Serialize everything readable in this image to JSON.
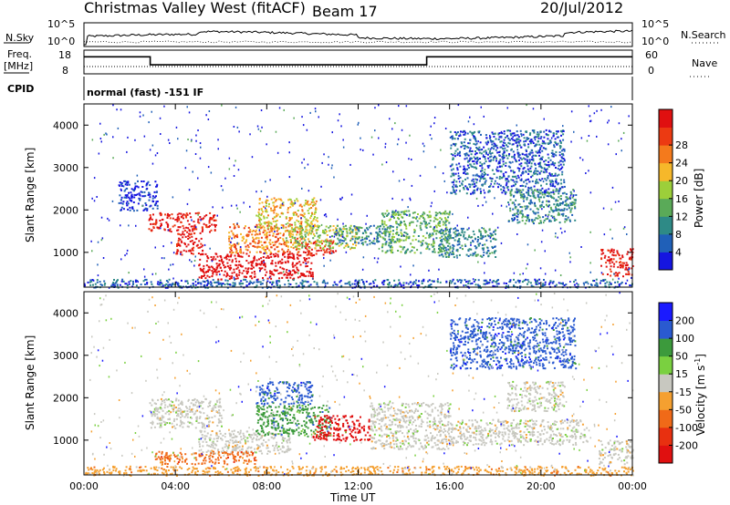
{
  "header": {
    "title": "Christmas Valley West (fitACF)",
    "beam": "Beam 17",
    "date": "20/Jul/2012"
  },
  "status_panels": {
    "nsky_label": "N.Sky",
    "nsky_ticks": [
      "10^5",
      "10^0"
    ],
    "nsearch_label": "N.Search",
    "nsearch_ticks": [
      "10^5",
      "10^0"
    ],
    "freq_label_line1": "Freq.",
    "freq_label_line2": "[MHz]",
    "freq_ticks": [
      "18",
      "8"
    ],
    "nave_label": "Nave",
    "nave_ticks": [
      "60",
      "0"
    ],
    "cpid_label": "CPID",
    "cpid_text": "normal (fast) -151 IF",
    "freq_steps": [
      {
        "hour_start": 0,
        "hour_end": 2.9,
        "mhz": 15.2
      },
      {
        "hour_start": 2.9,
        "hour_end": 15.0,
        "mhz": 11.8
      },
      {
        "hour_start": 15.0,
        "hour_end": 24,
        "mhz": 15.2
      }
    ]
  },
  "axes": {
    "xlabel": "Time UT",
    "x_ticks": [
      "00:00",
      "04:00",
      "08:00",
      "12:00",
      "16:00",
      "20:00",
      "00:00"
    ],
    "ylabel": "Slant Range [km]",
    "y_ticks": [
      "1000",
      "2000",
      "3000",
      "4000"
    ]
  },
  "power_colorbar": {
    "label": "Power [dB]",
    "ticks": [
      "4",
      "8",
      "12",
      "16",
      "20",
      "24",
      "28"
    ],
    "colors": [
      "#1515e0",
      "#2060b8",
      "#2e8a86",
      "#5aaa58",
      "#9ccf3a",
      "#f6b82a",
      "#f47a1c",
      "#ec3a12",
      "#e01010"
    ]
  },
  "velocity_colorbar": {
    "label_main": "Velocity [m s",
    "label_sup": "-1",
    "label_end": "]",
    "ticks": [
      "200",
      "100",
      "50",
      "15",
      "-15",
      "-50",
      "-100",
      "-200"
    ],
    "colors": [
      "#1a1aff",
      "#2a5ad0",
      "#3c9a3c",
      "#7ad040",
      "#c8c8c0",
      "#f5a030",
      "#f06a18",
      "#e83010",
      "#e01010"
    ]
  },
  "chart_data": {
    "type": "heatmap",
    "x_range_hours": [
      0,
      24
    ],
    "y_range_km": [
      180,
      4500
    ],
    "power_features": [
      {
        "t0": 2.8,
        "t1": 5.8,
        "r0": 1500,
        "r1": 1950,
        "level": 8
      },
      {
        "t0": 4.0,
        "t1": 5.2,
        "r0": 950,
        "r1": 1500,
        "level": 8
      },
      {
        "t0": 5.0,
        "t1": 10.0,
        "r0": 380,
        "r1": 1000,
        "level": 9
      },
      {
        "t0": 6.3,
        "t1": 9.5,
        "r0": 1000,
        "r1": 1700,
        "level": 6
      },
      {
        "t0": 7.5,
        "t1": 10.2,
        "r0": 1500,
        "r1": 2300,
        "level": 5
      },
      {
        "t0": 9.5,
        "t1": 11.0,
        "r0": 950,
        "r1": 1300,
        "level": 8
      },
      {
        "t0": 8.8,
        "t1": 12.0,
        "r0": 1100,
        "r1": 1650,
        "level": 4
      },
      {
        "t0": 11.0,
        "t1": 13.5,
        "r0": 1200,
        "r1": 1650,
        "level": 2
      },
      {
        "t0": 13.0,
        "t1": 16.0,
        "r0": 1000,
        "r1": 2000,
        "level": 3
      },
      {
        "t0": 15.5,
        "t1": 18.0,
        "r0": 900,
        "r1": 1600,
        "level": 2
      },
      {
        "t0": 16.0,
        "t1": 21.0,
        "r0": 2400,
        "r1": 3900,
        "level": 1
      },
      {
        "t0": 18.5,
        "t1": 21.5,
        "r0": 1700,
        "r1": 2500,
        "level": 2
      },
      {
        "t0": 22.6,
        "t1": 24.0,
        "r0": 450,
        "r1": 1100,
        "level": 8
      },
      {
        "t0": 0.0,
        "t1": 24.0,
        "r0": 180,
        "r1": 380,
        "level": 1
      },
      {
        "t0": 1.5,
        "t1": 3.2,
        "r0": 2000,
        "r1": 2700,
        "level": 0
      }
    ],
    "velocity_features": [
      {
        "t0": 2.8,
        "t1": 6.0,
        "r0": 1300,
        "r1": 2000,
        "v": 0
      },
      {
        "t0": 5.0,
        "t1": 9.0,
        "r0": 700,
        "r1": 1250,
        "v": 0
      },
      {
        "t0": 3.0,
        "t1": 7.5,
        "r0": 450,
        "r1": 750,
        "v": -60
      },
      {
        "t0": 7.5,
        "t1": 10.0,
        "r0": 1850,
        "r1": 2400,
        "v": 150
      },
      {
        "t0": 7.5,
        "t1": 10.8,
        "r0": 1100,
        "r1": 1850,
        "v": 40
      },
      {
        "t0": 10.0,
        "t1": 12.5,
        "r0": 1000,
        "r1": 1600,
        "v": -180
      },
      {
        "t0": 12.5,
        "t1": 16.0,
        "r0": 800,
        "r1": 1900,
        "v": 0
      },
      {
        "t0": 16.0,
        "t1": 22.0,
        "r0": 900,
        "r1": 1500,
        "v": 0
      },
      {
        "t0": 16.0,
        "t1": 21.5,
        "r0": 2700,
        "r1": 3900,
        "v": 150
      },
      {
        "t0": 18.5,
        "t1": 21.0,
        "r0": 1700,
        "r1": 2400,
        "v": 0
      },
      {
        "t0": 22.5,
        "t1": 24.0,
        "r0": 450,
        "r1": 1000,
        "v": 0
      },
      {
        "t0": 0.0,
        "t1": 24.0,
        "r0": 180,
        "r1": 400,
        "v": -30
      }
    ]
  }
}
